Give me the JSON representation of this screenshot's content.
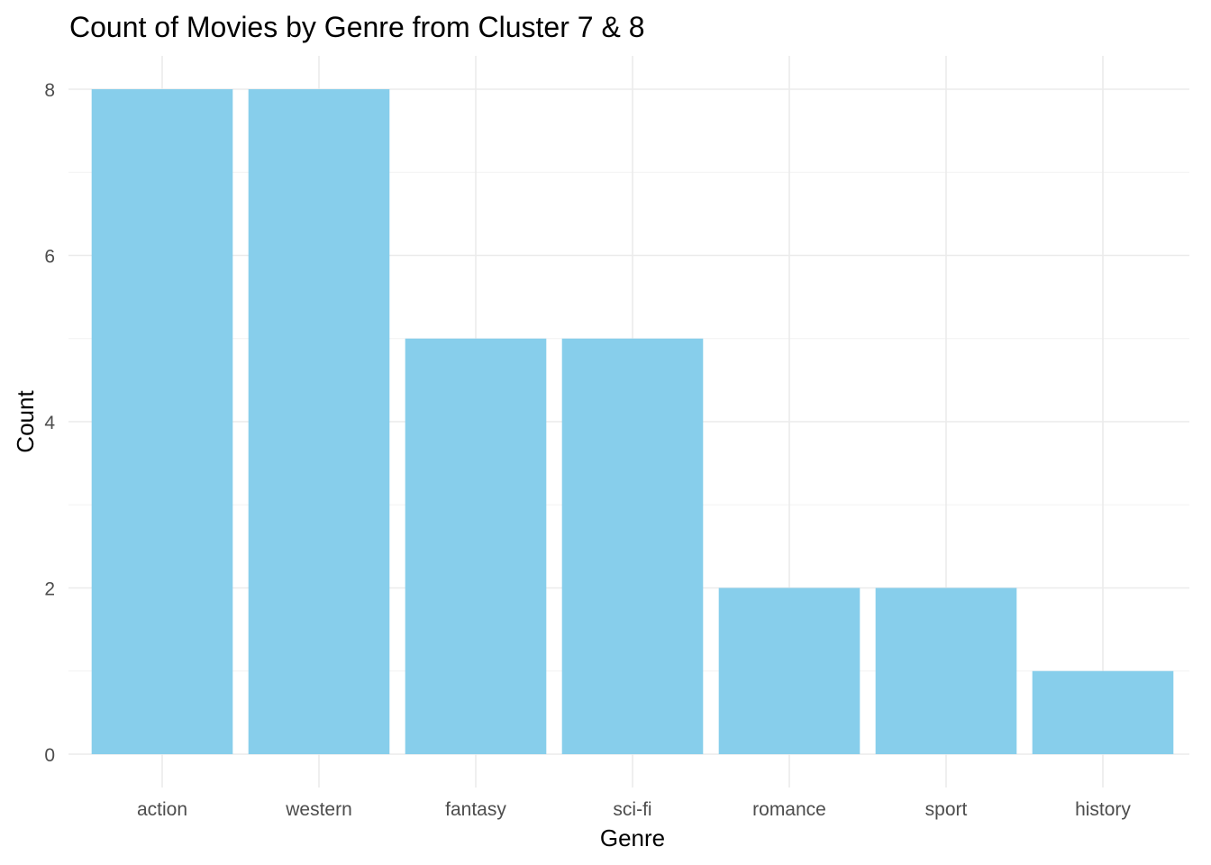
{
  "chart_data": {
    "type": "bar",
    "title": "Count of Movies by Genre from Cluster 7 & 8",
    "xlabel": "Genre",
    "ylabel": "Count",
    "categories": [
      "action",
      "western",
      "fantasy",
      "sci-fi",
      "romance",
      "sport",
      "history"
    ],
    "values": [
      8,
      8,
      5,
      5,
      2,
      2,
      1
    ],
    "ylim": [
      0,
      8
    ],
    "yticks": [
      "0",
      "2",
      "4",
      "6",
      "8"
    ],
    "grid": true,
    "legend": "none",
    "colors": {
      "bar": "#87CEEB",
      "grid_major": "#ebebeb",
      "grid_minor": "#f2f2f2",
      "tick_text": "#4d4d4d",
      "title_text": "#000000"
    }
  }
}
